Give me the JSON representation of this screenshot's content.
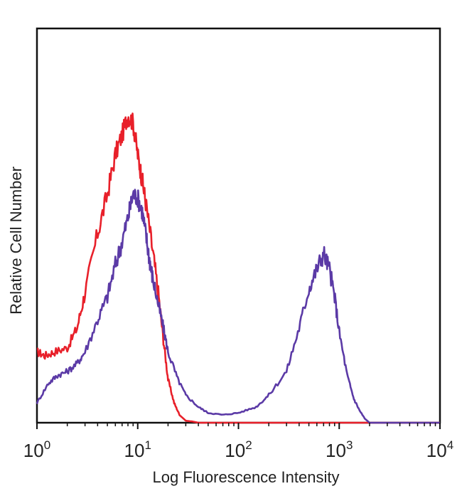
{
  "chart_data": {
    "type": "line",
    "title": "",
    "xlabel": "Log Fluorescence Intensity",
    "ylabel": "Relative Cell Number",
    "x_scale": "log",
    "xlim": [
      1,
      10000
    ],
    "ylim": [
      0,
      100
    ],
    "grid": false,
    "x_ticks": [
      {
        "base": "10",
        "exp": "0",
        "value": 1
      },
      {
        "base": "10",
        "exp": "1",
        "value": 10
      },
      {
        "base": "10",
        "exp": "2",
        "value": 100
      },
      {
        "base": "10",
        "exp": "3",
        "value": 1000
      },
      {
        "base": "10",
        "exp": "4",
        "value": 10000
      }
    ],
    "series": [
      {
        "color": "#e8202a",
        "x": [
          1,
          1.2,
          1.5,
          2,
          2.5,
          3,
          4,
          5,
          6,
          7,
          8,
          9,
          10,
          11,
          12,
          14,
          16,
          18,
          20,
          23,
          26,
          30,
          35,
          40,
          60,
          100,
          200,
          1000,
          10000
        ],
        "y": [
          18,
          17,
          18,
          19,
          24,
          33,
          48,
          58,
          68,
          73,
          78,
          76,
          68,
          62,
          56,
          44,
          33,
          21,
          11,
          5,
          2,
          0.5,
          0.3,
          0,
          0,
          0,
          0,
          0,
          0
        ]
      },
      {
        "color": "#5b3aa6",
        "x": [
          1,
          1.3,
          1.6,
          2,
          2.5,
          3,
          4,
          5,
          6,
          7,
          8,
          9,
          10,
          11,
          12,
          13,
          14,
          16,
          18,
          20,
          25,
          30,
          40,
          50,
          70,
          100,
          150,
          200,
          300,
          400,
          500,
          600,
          700,
          800,
          900,
          1000,
          1200,
          1400,
          1600,
          1800,
          2000
        ],
        "y": [
          5,
          10,
          12,
          13,
          15,
          18,
          26,
          32,
          40,
          46,
          52,
          58,
          57,
          54,
          48,
          42,
          37,
          30,
          24,
          18,
          11,
          7,
          4,
          2.5,
          2,
          2.5,
          4,
          7,
          13,
          24,
          34,
          39,
          43,
          39,
          32,
          23,
          12,
          6,
          3,
          1,
          0
        ]
      }
    ]
  }
}
